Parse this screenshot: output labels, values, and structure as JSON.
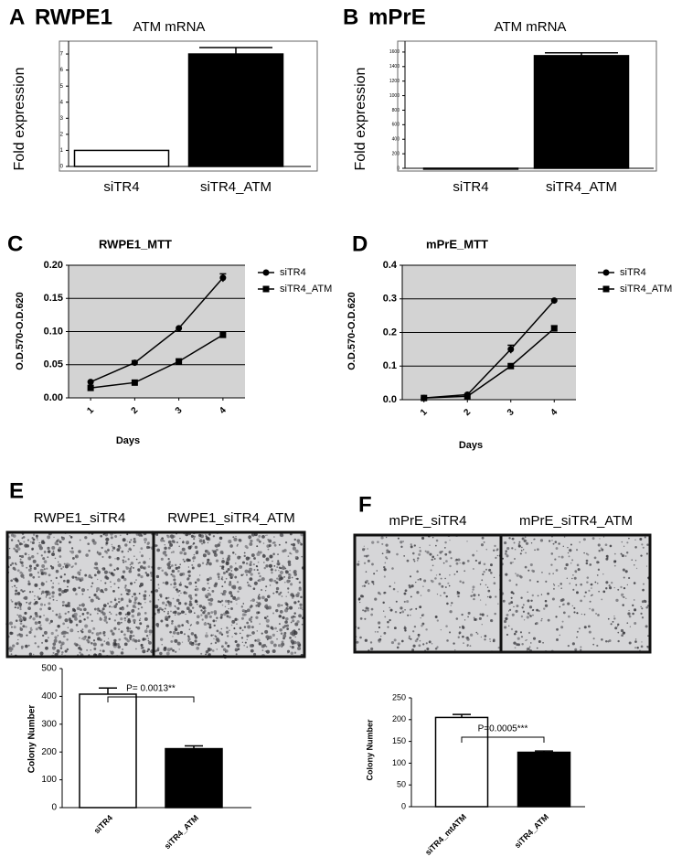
{
  "chart_data": [
    {
      "type": "bar",
      "panel_label": "A",
      "heading": "RWPE1",
      "title": "ATM mRNA",
      "ylabel": "Fold expression",
      "categories": [
        "siTR4",
        "siTR4_ATM"
      ],
      "values": [
        1,
        7
      ],
      "errors": [
        0,
        0.4
      ],
      "colors": [
        "#ffffff",
        "#000000"
      ],
      "ylim": [
        0,
        7.8
      ],
      "yticks": [
        0,
        1,
        2,
        3,
        4,
        5,
        6,
        7
      ]
    },
    {
      "type": "bar",
      "panel_label": "B",
      "heading": "mPrE",
      "title": "ATM mRNA",
      "ylabel": "Fold expression",
      "categories": [
        "siTR4",
        "siTR4_ATM"
      ],
      "values": [
        1,
        1550
      ],
      "errors": [
        0,
        40
      ],
      "colors": [
        "#ffffff",
        "#000000"
      ],
      "ylim": [
        0,
        1750
      ],
      "yticks": [
        0,
        200,
        400,
        600,
        800,
        1000,
        1200,
        1400,
        1600
      ]
    },
    {
      "type": "line",
      "panel_label": "C",
      "title": "RWPE1_MTT",
      "ylabel": "O.D.570-O.D.620",
      "xlabel": "Days",
      "categories": [
        "1",
        "2",
        "3",
        "4"
      ],
      "series": [
        {
          "name": "siTR4",
          "color": "#000000",
          "marker": "circle",
          "values": [
            0.024,
            0.053,
            0.105,
            0.181
          ],
          "errors": [
            0,
            0.003,
            0,
            0.006
          ]
        },
        {
          "name": "siTR4_ATM",
          "color": "#000000",
          "marker": "square",
          "values": [
            0.015,
            0.023,
            0.055,
            0.095
          ],
          "errors": [
            0,
            0,
            0,
            0
          ]
        }
      ],
      "ylim": [
        0,
        0.2
      ],
      "yticks": [
        {
          "value": 0,
          "label": "0.00"
        },
        {
          "value": 0.05,
          "label": "0.05"
        },
        {
          "value": 0.1,
          "label": "0.10"
        },
        {
          "value": 0.15,
          "label": "0.15"
        },
        {
          "value": 0.2,
          "label": "0.20"
        }
      ],
      "grid": true
    },
    {
      "type": "line",
      "panel_label": "D",
      "title": "mPrE_MTT",
      "ylabel": "O.D.570-O.D.620",
      "xlabel": "Days",
      "categories": [
        "1",
        "2",
        "3",
        "4"
      ],
      "series": [
        {
          "name": "siTR4",
          "color": "#000000",
          "marker": "circle",
          "values": [
            0.005,
            0.015,
            0.15,
            0.295
          ],
          "errors": [
            0,
            0,
            0.012,
            0
          ]
        },
        {
          "name": "siTR4_ATM",
          "color": "#000000",
          "marker": "square",
          "values": [
            0.005,
            0.01,
            0.1,
            0.212
          ],
          "errors": [
            0,
            0,
            0,
            0.008
          ]
        }
      ],
      "ylim": [
        0,
        0.4
      ],
      "yticks": [
        {
          "value": 0,
          "label": "0.0"
        },
        0.1,
        0.2,
        0.3,
        0.4
      ],
      "grid": true
    },
    {
      "type": "bar",
      "panel_label": "E",
      "image_labels": [
        "RWPE1_siTR4",
        "RWPE1_siTR4_ATM"
      ],
      "ylabel": "Colony Number",
      "categories": [
        "siTR4",
        "siTR4_ATM"
      ],
      "values": [
        408,
        212
      ],
      "errors": [
        22,
        10
      ],
      "colors": [
        "#ffffff",
        "#000000"
      ],
      "annotation": "P= 0.0013**",
      "ylim": [
        0,
        500
      ],
      "yticks": [
        0,
        100,
        200,
        300,
        400,
        500
      ]
    },
    {
      "type": "bar",
      "panel_label": "F",
      "image_labels": [
        "mPrE_siTR4",
        "mPrE_siTR4_ATM"
      ],
      "ylabel": "Colony Number",
      "categories": [
        "siTR4_mtATM",
        "siTR4_ATM"
      ],
      "values": [
        205,
        125
      ],
      "errors": [
        7,
        3
      ],
      "colors": [
        "#ffffff",
        "#000000"
      ],
      "annotation": "P=0.0005***",
      "ylim": [
        0,
        250
      ],
      "yticks": [
        0,
        50,
        100,
        150,
        200,
        250
      ]
    }
  ]
}
